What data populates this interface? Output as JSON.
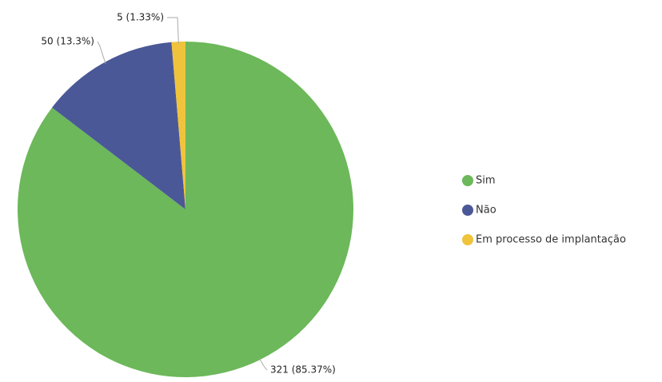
{
  "chart_data": {
    "type": "pie",
    "categories": [
      "Sim",
      "Não",
      "Em processo de implantação"
    ],
    "values": [
      321,
      50,
      5
    ],
    "value_labels": [
      "321 (85.37%)",
      "50 (13.3%)",
      "5 (1.33%)"
    ],
    "colors": [
      "#6cb85a",
      "#4b5897",
      "#f0c33c"
    ],
    "legend": "right"
  }
}
